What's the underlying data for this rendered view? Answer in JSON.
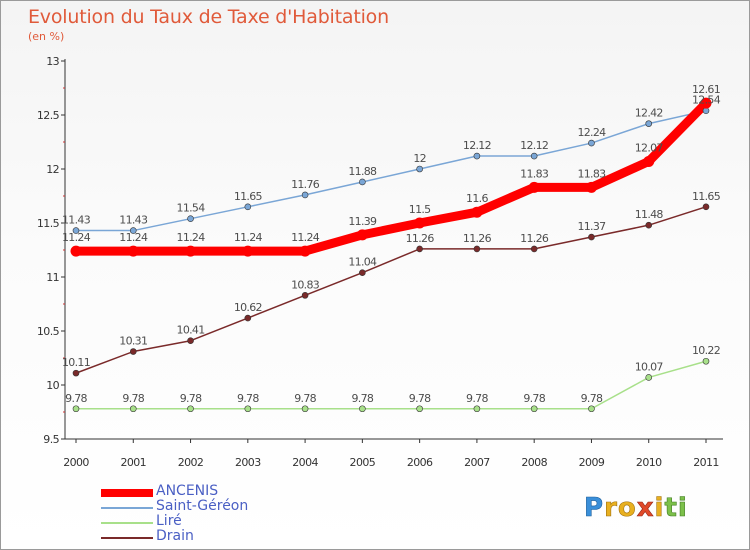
{
  "title": "Evolution du Taux de Taxe d'Habitation",
  "subtitle": "(en %)",
  "logo_text": "Proxiti",
  "chart_data": {
    "type": "line",
    "title": "Evolution du Taux de Taxe d'Habitation",
    "subtitle": "(en %)",
    "x": [
      "2000",
      "2001",
      "2002",
      "2003",
      "2004",
      "2005",
      "2006",
      "2007",
      "2008",
      "2009",
      "2010",
      "2011"
    ],
    "ylim": [
      9.5,
      13
    ],
    "yticks": [
      "9.5",
      "10",
      "10.5",
      "11",
      "11.5",
      "12",
      "12.5",
      "13"
    ],
    "grid": false,
    "legend_position": "bottom-left",
    "series": [
      {
        "name": "ANCENIS",
        "color": "#ff0000",
        "values": [
          11.24,
          11.24,
          11.24,
          11.24,
          11.24,
          11.39,
          11.5,
          11.6,
          11.83,
          11.83,
          12.07,
          12.61
        ],
        "labels": [
          "11.24",
          "11.24",
          "11.24",
          "11.24",
          "11.24",
          "11.39",
          "11.5",
          "11.6",
          "11.83",
          "11.83",
          "12.07",
          "12.61"
        ]
      },
      {
        "name": "Saint-Géréon",
        "color": "#7aa6d6",
        "values": [
          11.43,
          11.43,
          11.54,
          11.65,
          11.76,
          11.88,
          12,
          12.12,
          12.12,
          12.24,
          12.42,
          12.54
        ],
        "labels": [
          "11.43",
          "11.43",
          "11.54",
          "11.65",
          "11.76",
          "11.88",
          "12",
          "12.12",
          "12.12",
          "12.24",
          "12.42",
          "12.54"
        ]
      },
      {
        "name": "Liré",
        "color": "#a8e08a",
        "values": [
          9.78,
          9.78,
          9.78,
          9.78,
          9.78,
          9.78,
          9.78,
          9.78,
          9.78,
          9.78,
          10.07,
          10.22
        ],
        "labels": [
          "9.78",
          "9.78",
          "9.78",
          "9.78",
          "9.78",
          "9.78",
          "9.78",
          "9.78",
          "9.78",
          "9.78",
          "10.07",
          "10.22"
        ]
      },
      {
        "name": "Drain",
        "color": "#7a2a2a",
        "values": [
          10.11,
          10.31,
          10.41,
          10.62,
          10.83,
          11.04,
          11.26,
          11.26,
          11.26,
          11.37,
          11.48,
          11.65
        ],
        "labels": [
          "10.11",
          "10.31",
          "10.41",
          "10.62",
          "10.83",
          "11.04",
          "11.26",
          "11.26",
          "11.26",
          "11.37",
          "11.48",
          "11.65"
        ]
      }
    ]
  }
}
